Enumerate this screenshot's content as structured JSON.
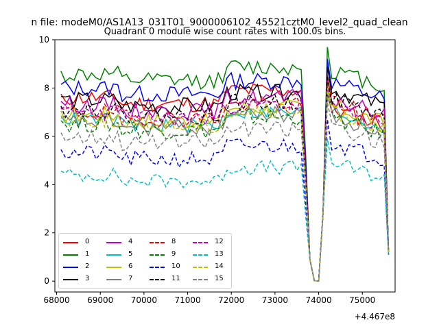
{
  "suptitle": "n file: modeM0/AS1A13_031T01_9000006102_45521cztM0_level2_quad_clean",
  "chart_data": {
    "type": "line",
    "title": "Quadrant 0 module wise count rates with 100.0s bins.",
    "xlabel": "",
    "ylabel": "",
    "x_offset_label": "+4.467e8",
    "xlim": [
      67960,
      75750
    ],
    "ylim": [
      -0.45,
      10.0
    ],
    "x_ticks": [
      68000,
      69000,
      70000,
      71000,
      72000,
      73000,
      74000,
      75000
    ],
    "x_tick_labels": [
      "68000",
      "69000",
      "70000",
      "71000",
      "72000",
      "73000",
      "74000",
      "75000"
    ],
    "y_ticks": [
      0,
      2,
      4,
      6,
      8,
      10
    ],
    "y_tick_labels": [
      "0",
      "2",
      "4",
      "6",
      "8",
      "10"
    ],
    "grid": false,
    "legend_position": "lower-left",
    "x_start": 68100,
    "x_step": 100,
    "n_points": 76,
    "series": [
      {
        "name": "0",
        "color": "#ff0000",
        "style": "solid",
        "base": 7.6,
        "a": 7.2,
        "noise": 0.35,
        "seed": 11
      },
      {
        "name": "1",
        "color": "#008000",
        "style": "solid",
        "base": 8.55,
        "a": 8.8,
        "noise": 0.35,
        "seed": 12
      },
      {
        "name": "2",
        "color": "#0000ff",
        "style": "solid",
        "base": 8.0,
        "a": 8.3,
        "noise": 0.35,
        "seed": 13
      },
      {
        "name": "3",
        "color": "#000000",
        "style": "solid",
        "base": 7.5,
        "a": 8.0,
        "noise": 0.35,
        "seed": 14
      },
      {
        "name": "4",
        "color": "#bf00bf",
        "style": "solid",
        "base": 7.3,
        "a": 7.6,
        "noise": 0.35,
        "seed": 15
      },
      {
        "name": "5",
        "color": "#00bfbf",
        "style": "solid",
        "base": 6.7,
        "a": 7.1,
        "noise": 0.3,
        "seed": 16
      },
      {
        "name": "6",
        "color": "#bfbf00",
        "style": "solid",
        "base": 6.9,
        "a": 7.3,
        "noise": 0.35,
        "seed": 17
      },
      {
        "name": "7",
        "color": "#808080",
        "style": "solid",
        "base": 6.6,
        "a": 6.9,
        "noise": 0.35,
        "seed": 18
      },
      {
        "name": "8",
        "color": "#ff0000",
        "style": "dashed",
        "base": 7.0,
        "a": 7.5,
        "noise": 0.35,
        "seed": 19
      },
      {
        "name": "9",
        "color": "#008000",
        "style": "dashed",
        "base": 6.5,
        "a": 6.8,
        "noise": 0.35,
        "seed": 20
      },
      {
        "name": "10",
        "color": "#0000ff",
        "style": "dashed",
        "base": 5.3,
        "a": 5.8,
        "noise": 0.35,
        "seed": 21
      },
      {
        "name": "11",
        "color": "#000000",
        "style": "dashed",
        "base": 7.1,
        "a": 7.6,
        "noise": 0.35,
        "seed": 22
      },
      {
        "name": "12",
        "color": "#bf00bf",
        "style": "dashed",
        "base": 7.0,
        "a": 7.2,
        "noise": 0.35,
        "seed": 23
      },
      {
        "name": "13",
        "color": "#00bfbf",
        "style": "dashed",
        "base": 4.4,
        "a": 5.0,
        "noise": 0.3,
        "seed": 24
      },
      {
        "name": "14",
        "color": "#bfbf00",
        "style": "dashed",
        "base": 6.7,
        "a": 7.1,
        "noise": 0.35,
        "seed": 25
      },
      {
        "name": "15",
        "color": "#808080",
        "style": "dashed",
        "base": 6.0,
        "a": 6.5,
        "noise": 0.35,
        "seed": 26
      }
    ]
  }
}
